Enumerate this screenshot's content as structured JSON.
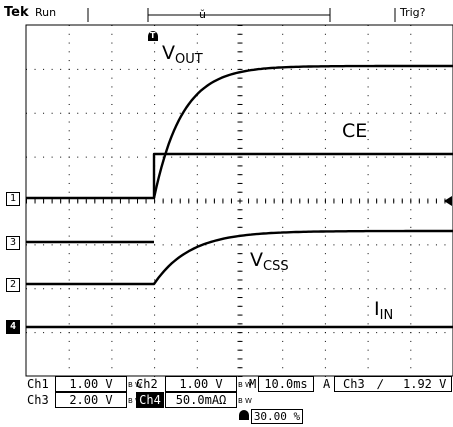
{
  "status": {
    "brand": "Tek",
    "state": "Run",
    "trigger_state": "Trig?"
  },
  "markers": {
    "trigger_position": "T",
    "center_marker": "ŭ"
  },
  "channels": {
    "ch1_marker": "1",
    "ch2_marker": "2",
    "ch3_marker": "3",
    "ch4_marker": "4"
  },
  "trace_labels": {
    "vout": {
      "main": "V",
      "sub": "OUT"
    },
    "ce": "CE",
    "vcss": {
      "main": "V",
      "sub": "CSS"
    },
    "iin": {
      "main": "I",
      "sub": "IN"
    }
  },
  "readouts": {
    "ch1_label": "Ch1",
    "ch1_scale": "1.00 V",
    "ch2_label": "Ch2",
    "ch2_scale": "1.00 V",
    "ch3_label": "Ch3",
    "ch3_scale": "2.00 V",
    "ch4_label": "Ch4",
    "ch4_scale": "50.0mAΩ",
    "bw_mark": "B W",
    "time_label": "M",
    "time_scale": "10.0ms",
    "trig_label": "A",
    "trig_source": "Ch3",
    "trig_slope": "∕",
    "trig_level": "1.92 V",
    "trig_position": "30.00 %"
  },
  "colors": {
    "trace": "#000000",
    "grid": "#000000",
    "background": "#ffffff"
  }
}
